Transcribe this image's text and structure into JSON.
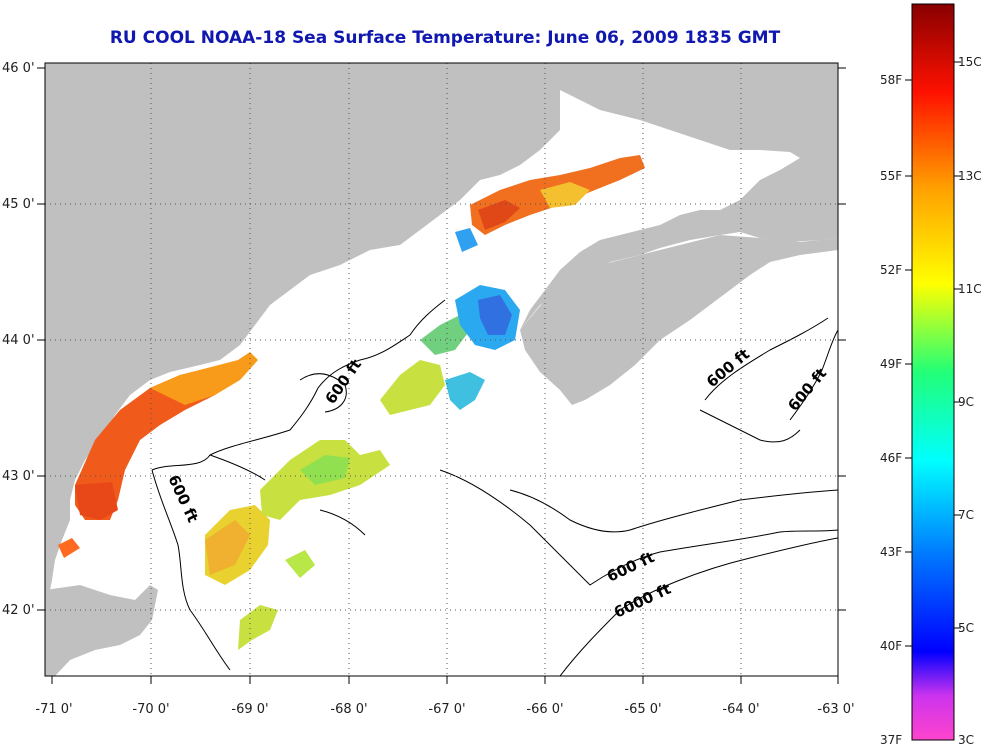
{
  "title": "RU COOL  NOAA-18  Sea Surface Temperature:  June 06, 2009 1835 GMT",
  "map": {
    "lon_labels": [
      "-71 0'",
      "-70 0'",
      "-69 0'",
      "-68 0'",
      "-67 0'",
      "-66 0'",
      "-65 0'",
      "-64 0'",
      "-63 0'"
    ],
    "lat_labels": [
      "46 0'",
      "45 0'",
      "44 0'",
      "43 0'",
      "42 0'"
    ],
    "lon_range": [
      -71,
      -63
    ],
    "lat_range": [
      41.5,
      46
    ],
    "depth_contour_labels": [
      {
        "text": "600 ft",
        "id": "600-ft-label-1"
      },
      {
        "text": "600 ft",
        "id": "600-ft-label-2"
      },
      {
        "text": "600 ft",
        "id": "600-ft-label-3"
      },
      {
        "text": "600 ft",
        "id": "600-ft-label-4"
      },
      {
        "text": "600 ft",
        "id": "600-ft-label-5"
      },
      {
        "text": "6000 ft",
        "id": "6000-ft-label"
      }
    ],
    "land_color": "#c0c0c0",
    "grid": "dotted"
  },
  "colorbar": {
    "fahrenheit_labels": [
      "58F",
      "55F",
      "52F",
      "49F",
      "46F",
      "43F",
      "40F",
      "37F"
    ],
    "celsius_labels": [
      "15C",
      "13C",
      "11C",
      "9C",
      "7C",
      "5C",
      "3C"
    ],
    "stops": [
      "#ff44cc",
      "#9930ff",
      "#0000ff",
      "#0088ff",
      "#00ffff",
      "#33ff66",
      "#ffff00",
      "#ff9900",
      "#ff2200",
      "#990000"
    ]
  }
}
